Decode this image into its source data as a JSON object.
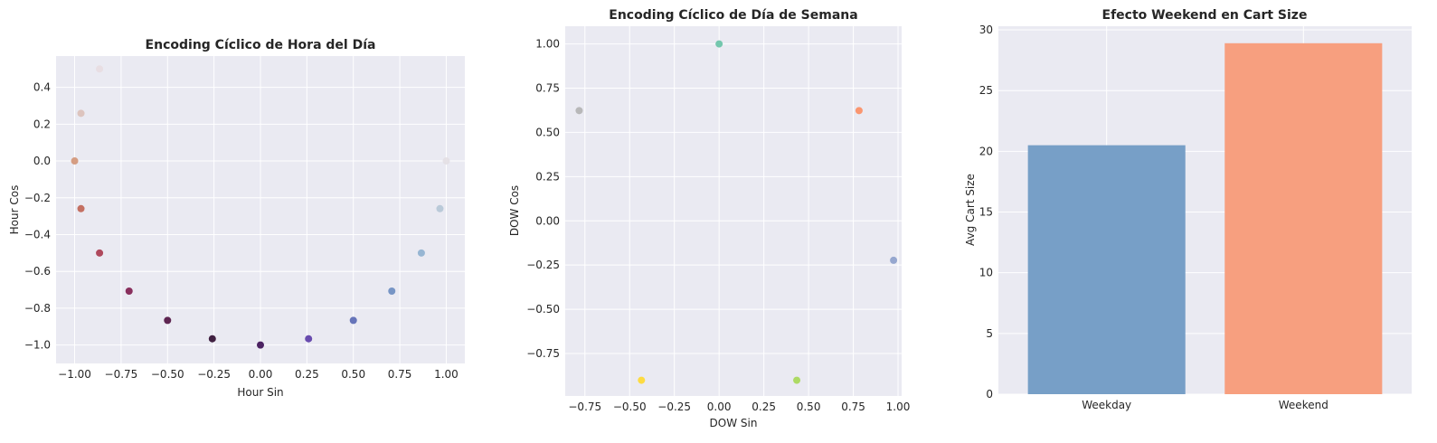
{
  "chart_data": [
    {
      "type": "scatter",
      "title": "Encoding Cíclico de Hora del Día",
      "xlabel": "Hour Sin",
      "ylabel": "Hour Cos",
      "xlim": [
        -1.1,
        1.1
      ],
      "ylim": [
        -1.1,
        0.57
      ],
      "xticks": [
        -1.0,
        -0.75,
        -0.5,
        -0.25,
        0.0,
        0.25,
        0.5,
        0.75,
        1.0
      ],
      "xtick_labels": [
        "−1.00",
        "−0.75",
        "−0.50",
        "−0.25",
        "0.00",
        "0.25",
        "0.50",
        "0.75",
        "1.00"
      ],
      "yticks": [
        -1.0,
        -0.8,
        -0.6,
        -0.4,
        -0.2,
        0.0,
        0.2,
        0.4
      ],
      "ytick_labels": [
        "−1.0",
        "−0.8",
        "−0.6",
        "−0.4",
        "−0.2",
        "0.0",
        "0.2",
        "0.4"
      ],
      "grid": true,
      "points": [
        {
          "x": 0.0,
          "y": -1.0,
          "color": "#3a0c52"
        },
        {
          "x": 0.259,
          "y": -0.966,
          "color": "#5a3aa6"
        },
        {
          "x": 0.5,
          "y": -0.866,
          "color": "#5867b3"
        },
        {
          "x": 0.707,
          "y": -0.707,
          "color": "#6a8cc0"
        },
        {
          "x": 0.866,
          "y": -0.5,
          "color": "#8eb0cf"
        },
        {
          "x": 0.966,
          "y": -0.259,
          "color": "#b5c7d6"
        },
        {
          "x": 1.0,
          "y": 0.0,
          "color": "#e3dfe3"
        },
        {
          "x": -0.866,
          "y": 0.5,
          "color": "#e8dde1"
        },
        {
          "x": -0.966,
          "y": 0.259,
          "color": "#dcc0b8"
        },
        {
          "x": -1.0,
          "y": 0.0,
          "color": "#d19476"
        },
        {
          "x": -0.966,
          "y": -0.259,
          "color": "#c06352"
        },
        {
          "x": -0.866,
          "y": -0.5,
          "color": "#a8374c"
        },
        {
          "x": -0.707,
          "y": -0.707,
          "color": "#7e1b4c"
        },
        {
          "x": -0.5,
          "y": -0.866,
          "color": "#4f0f3f"
        },
        {
          "x": -0.259,
          "y": -0.966,
          "color": "#2d0a2e"
        }
      ]
    },
    {
      "type": "scatter",
      "title": "Encoding Cíclico de Día de Semana",
      "xlabel": "DOW Sin",
      "ylabel": "DOW Cos",
      "xlim": [
        -0.86,
        1.02
      ],
      "ylim": [
        -0.99,
        1.1
      ],
      "xticks": [
        -0.75,
        -0.5,
        -0.25,
        0.0,
        0.25,
        0.5,
        0.75,
        1.0
      ],
      "xtick_labels": [
        "−0.75",
        "−0.50",
        "−0.25",
        "0.00",
        "0.25",
        "0.50",
        "0.75",
        "1.00"
      ],
      "yticks": [
        -0.75,
        -0.5,
        -0.25,
        0.0,
        0.25,
        0.5,
        0.75,
        1.0
      ],
      "ytick_labels": [
        "−0.75",
        "−0.50",
        "−0.25",
        "0.00",
        "0.25",
        "0.50",
        "0.75",
        "1.00"
      ],
      "grid": true,
      "points": [
        {
          "x": 0.0,
          "y": 1.0,
          "color": "#66c2a5"
        },
        {
          "x": 0.782,
          "y": 0.623,
          "color": "#fc8d62"
        },
        {
          "x": 0.975,
          "y": -0.223,
          "color": "#8da0cb"
        },
        {
          "x": 0.434,
          "y": -0.901,
          "color": "#a6d854"
        },
        {
          "x": -0.434,
          "y": -0.901,
          "color": "#ffd92f"
        },
        {
          "x": -0.782,
          "y": 0.623,
          "color": "#b3b3b3"
        }
      ]
    },
    {
      "type": "bar",
      "title": "Efecto Weekend en Cart Size",
      "xlabel": "",
      "ylabel": "Avg Cart Size",
      "categories": [
        "Weekday",
        "Weekend"
      ],
      "values": [
        20.5,
        28.9
      ],
      "colors": [
        "#779fc7",
        "#f79f7f"
      ],
      "ylim": [
        0,
        30.3
      ],
      "yticks": [
        0,
        5,
        10,
        15,
        20,
        25,
        30
      ],
      "ytick_labels": [
        "0",
        "5",
        "10",
        "15",
        "20",
        "25",
        "30"
      ],
      "grid": true
    }
  ]
}
